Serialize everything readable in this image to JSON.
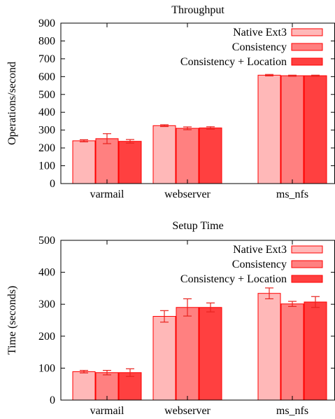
{
  "colors": {
    "native_fill": "#ffb8b8",
    "consistency_fill": "#ff8080",
    "consistency_location_fill": "#ff4040",
    "bar_outline": "#ff0000",
    "error_bar": "#e8231f",
    "axis": "#000000"
  },
  "chart_data": [
    {
      "type": "bar",
      "title": "Throughput",
      "xlabel": "",
      "ylabel": "Operations/second",
      "ylim": [
        0,
        900
      ],
      "yticks": [
        0,
        100,
        200,
        300,
        400,
        500,
        600,
        700,
        800,
        900
      ],
      "categories": [
        "varmail",
        "webserver",
        "ms_nfs"
      ],
      "legend_position": "top-right",
      "grid": false,
      "series": [
        {
          "name": "Native Ext3",
          "color": "#ffb8b8",
          "values": [
            240,
            325,
            608
          ],
          "errors": [
            6,
            5,
            4
          ]
        },
        {
          "name": "Consistency",
          "color": "#ff8080",
          "values": [
            252,
            310,
            605
          ],
          "errors": [
            28,
            8,
            3
          ]
        },
        {
          "name": "Consistency + Location",
          "color": "#ff4040",
          "values": [
            237,
            312,
            605
          ],
          "errors": [
            10,
            7,
            3
          ]
        }
      ]
    },
    {
      "type": "bar",
      "title": "Setup Time",
      "xlabel": "",
      "ylabel": "Time (seconds)",
      "ylim": [
        0,
        500
      ],
      "yticks": [
        0,
        100,
        200,
        300,
        400,
        500
      ],
      "categories": [
        "varmail",
        "webserver",
        "ms_nfs"
      ],
      "legend_position": "top-right",
      "grid": false,
      "series": [
        {
          "name": "Native Ext3",
          "color": "#ffb8b8",
          "values": [
            89,
            262,
            334
          ],
          "errors": [
            4,
            18,
            17
          ]
        },
        {
          "name": "Consistency",
          "color": "#ff8080",
          "values": [
            86,
            290,
            301
          ],
          "errors": [
            7,
            27,
            8
          ]
        },
        {
          "name": "Consistency + Location",
          "color": "#ff4040",
          "values": [
            86,
            290,
            307
          ],
          "errors": [
            12,
            14,
            17
          ]
        }
      ]
    }
  ]
}
